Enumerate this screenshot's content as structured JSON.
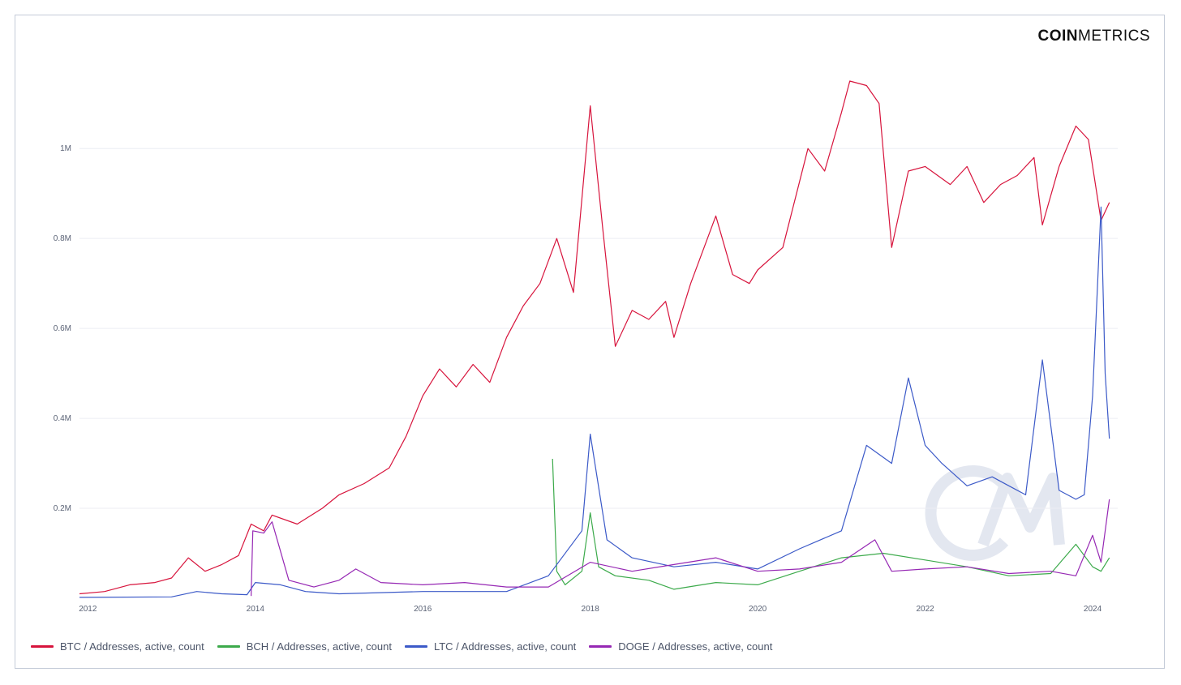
{
  "brand": {
    "logo_bold": "COIN",
    "logo_light": "METRICS"
  },
  "colors": {
    "btc": "#d7143c",
    "bch": "#3caa4b",
    "ltc": "#3c5ac8",
    "doge": "#9628b4",
    "grid": "#eceef3",
    "watermark": "#e3e7f0"
  },
  "chart_data": {
    "type": "line",
    "y_ticks": [
      {
        "value": 200000,
        "label": "0.2M"
      },
      {
        "value": 400000,
        "label": "0.4M"
      },
      {
        "value": 600000,
        "label": "0.6M"
      },
      {
        "value": 800000,
        "label": "0.8M"
      },
      {
        "value": 1000000,
        "label": "1M"
      }
    ],
    "x_ticks": [
      {
        "value": 2012,
        "label": "2012"
      },
      {
        "value": 2014,
        "label": "2014"
      },
      {
        "value": 2016,
        "label": "2016"
      },
      {
        "value": 2018,
        "label": "2018"
      },
      {
        "value": 2020,
        "label": "2020"
      },
      {
        "value": 2022,
        "label": "2022"
      },
      {
        "value": 2024,
        "label": "2024"
      }
    ],
    "xlim": [
      2011.9,
      2024.3
    ],
    "ylim": [
      0,
      1150000
    ],
    "grid": true,
    "legend_position": "bottom",
    "series": [
      {
        "name": "BTC / Addresses, active, count",
        "color": "#d7143c",
        "x": [
          2011.9,
          2012.2,
          2012.5,
          2012.8,
          2013.0,
          2013.2,
          2013.4,
          2013.6,
          2013.8,
          2013.95,
          2014.1,
          2014.2,
          2014.5,
          2014.8,
          2015.0,
          2015.3,
          2015.6,
          2015.8,
          2016.0,
          2016.2,
          2016.4,
          2016.6,
          2016.8,
          2017.0,
          2017.2,
          2017.4,
          2017.6,
          2017.8,
          2018.0,
          2018.15,
          2018.3,
          2018.5,
          2018.7,
          2018.9,
          2019.0,
          2019.2,
          2019.5,
          2019.7,
          2019.9,
          2020.0,
          2020.3,
          2020.6,
          2020.8,
          2021.0,
          2021.1,
          2021.3,
          2021.45,
          2021.6,
          2021.8,
          2022.0,
          2022.3,
          2022.5,
          2022.7,
          2022.9,
          2023.1,
          2023.3,
          2023.4,
          2023.6,
          2023.8,
          2023.95,
          2024.1,
          2024.2
        ],
        "y": [
          10000,
          15000,
          30000,
          35000,
          45000,
          90000,
          60000,
          75000,
          95000,
          165000,
          150000,
          185000,
          165000,
          200000,
          230000,
          255000,
          290000,
          360000,
          450000,
          510000,
          470000,
          520000,
          480000,
          580000,
          650000,
          700000,
          800000,
          680000,
          1095000,
          820000,
          560000,
          640000,
          620000,
          660000,
          580000,
          700000,
          850000,
          720000,
          700000,
          730000,
          780000,
          1000000,
          950000,
          1080000,
          1150000,
          1140000,
          1100000,
          780000,
          950000,
          960000,
          920000,
          960000,
          880000,
          920000,
          940000,
          980000,
          830000,
          960000,
          1050000,
          1020000,
          840000,
          880000
        ]
      },
      {
        "name": "BCH / Addresses, active, count",
        "color": "#3caa4b",
        "x": [
          2017.55,
          2017.6,
          2017.7,
          2017.9,
          2018.0,
          2018.1,
          2018.3,
          2018.7,
          2019.0,
          2019.5,
          2020.0,
          2020.5,
          2021.0,
          2021.5,
          2022.0,
          2022.5,
          2023.0,
          2023.5,
          2023.8,
          2024.0,
          2024.1,
          2024.2
        ],
        "y": [
          310000,
          60000,
          30000,
          60000,
          190000,
          70000,
          50000,
          40000,
          20000,
          35000,
          30000,
          60000,
          90000,
          100000,
          85000,
          70000,
          50000,
          55000,
          120000,
          70000,
          60000,
          90000
        ]
      },
      {
        "name": "LTC / Addresses, active, count",
        "color": "#3c5ac8",
        "x": [
          2011.9,
          2013.0,
          2013.3,
          2013.6,
          2013.9,
          2014.0,
          2014.3,
          2014.6,
          2015.0,
          2016.0,
          2017.0,
          2017.5,
          2017.9,
          2018.0,
          2018.2,
          2018.5,
          2019.0,
          2019.5,
          2020.0,
          2020.5,
          2021.0,
          2021.3,
          2021.6,
          2021.8,
          2022.0,
          2022.2,
          2022.5,
          2022.8,
          2023.0,
          2023.2,
          2023.4,
          2023.6,
          2023.8,
          2023.9,
          2024.0,
          2024.1,
          2024.15,
          2024.2
        ],
        "y": [
          2000,
          3000,
          15000,
          10000,
          8000,
          35000,
          30000,
          15000,
          10000,
          15000,
          15000,
          50000,
          150000,
          365000,
          130000,
          90000,
          70000,
          80000,
          65000,
          110000,
          150000,
          340000,
          300000,
          490000,
          340000,
          300000,
          250000,
          270000,
          250000,
          230000,
          530000,
          240000,
          220000,
          230000,
          450000,
          870000,
          500000,
          355000
        ]
      },
      {
        "name": "DOGE / Addresses, active, count",
        "color": "#9628b4",
        "x": [
          2013.95,
          2013.97,
          2014.1,
          2014.2,
          2014.4,
          2014.7,
          2015.0,
          2015.2,
          2015.5,
          2016.0,
          2016.5,
          2017.0,
          2017.5,
          2018.0,
          2018.5,
          2019.0,
          2019.5,
          2020.0,
          2020.5,
          2021.0,
          2021.4,
          2021.6,
          2022.0,
          2022.5,
          2023.0,
          2023.5,
          2023.8,
          2024.0,
          2024.1,
          2024.2
        ],
        "y": [
          5000,
          150000,
          145000,
          170000,
          40000,
          25000,
          40000,
          65000,
          35000,
          30000,
          35000,
          25000,
          25000,
          80000,
          60000,
          75000,
          90000,
          60000,
          65000,
          80000,
          130000,
          60000,
          65000,
          70000,
          55000,
          60000,
          50000,
          140000,
          80000,
          220000
        ]
      }
    ]
  }
}
